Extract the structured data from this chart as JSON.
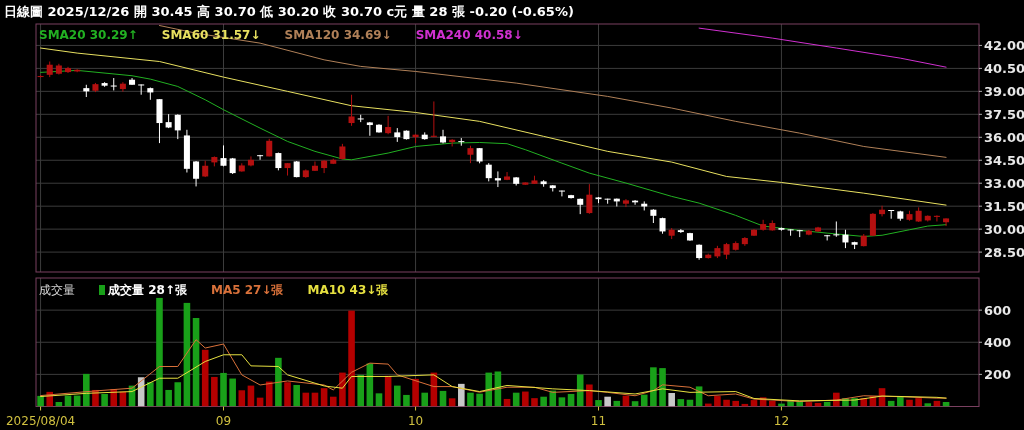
{
  "chart_data": [
    {
      "type": "candlestick",
      "title": "日線圖  2025/12/26  開 30.45  高 30.70  低 30.20  收 30.70 c元  量 28 張  -0.20 (-0.65%)",
      "categories": [
        "2025/08/04",
        null,
        null,
        null,
        null,
        null,
        null,
        null,
        null,
        null,
        null,
        null,
        null,
        null,
        null,
        null,
        null,
        null,
        null,
        null,
        "09",
        null,
        null,
        null,
        null,
        null,
        null,
        null,
        null,
        null,
        null,
        null,
        null,
        null,
        null,
        null,
        null,
        null,
        null,
        null,
        null,
        "10",
        null,
        null,
        null,
        null,
        null,
        null,
        null,
        null,
        null,
        null,
        null,
        null,
        null,
        null,
        null,
        null,
        null,
        null,
        null,
        "11",
        null,
        null,
        null,
        null,
        null,
        null,
        null,
        null,
        null,
        null,
        null,
        null,
        null,
        null,
        null,
        null,
        null,
        null,
        null,
        "12",
        null,
        null,
        null,
        null,
        null,
        null,
        null,
        null,
        null,
        null,
        null,
        null,
        null,
        null,
        null,
        null,
        null,
        null
      ],
      "ohlc": [
        [
          39.95,
          40.05,
          39.9,
          40.0
        ],
        [
          40.08,
          40.95,
          39.93,
          40.74
        ],
        [
          40.15,
          40.8,
          40.1,
          40.69
        ],
        [
          40.26,
          40.6,
          40.2,
          40.52
        ],
        [
          40.3,
          40.45,
          40.25,
          40.41
        ],
        [
          39.21,
          39.43,
          38.63,
          39.0
        ],
        [
          39.04,
          39.55,
          38.95,
          39.47
        ],
        [
          39.54,
          39.6,
          39.3,
          39.37
        ],
        [
          39.38,
          39.87,
          39.06,
          39.34
        ],
        [
          39.15,
          39.6,
          38.98,
          39.5
        ],
        [
          39.76,
          39.87,
          39.43,
          39.43
        ],
        [
          39.45,
          39.45,
          38.78,
          39.43
        ],
        [
          39.21,
          39.25,
          38.45,
          38.93
        ],
        [
          38.49,
          38.49,
          35.62,
          36.93
        ],
        [
          36.99,
          37.51,
          36.6,
          36.64
        ],
        [
          37.47,
          37.5,
          35.88,
          36.45
        ],
        [
          36.12,
          36.49,
          33.7,
          33.94
        ],
        [
          34.42,
          34.45,
          32.79,
          33.29
        ],
        [
          33.44,
          34.47,
          33.4,
          34.14
        ],
        [
          34.36,
          34.75,
          34.1,
          34.71
        ],
        [
          34.64,
          35.47,
          34.1,
          34.14
        ],
        [
          34.62,
          34.65,
          33.6,
          33.66
        ],
        [
          33.77,
          34.3,
          33.75,
          34.16
        ],
        [
          34.16,
          34.75,
          34.1,
          34.53
        ],
        [
          34.83,
          34.85,
          34.53,
          34.8
        ],
        [
          34.75,
          35.9,
          34.75,
          35.77
        ],
        [
          34.97,
          35.0,
          33.84,
          33.99
        ],
        [
          33.99,
          34.32,
          33.5,
          34.31
        ],
        [
          34.42,
          34.45,
          33.38,
          33.4
        ],
        [
          33.4,
          33.9,
          33.35,
          33.84
        ],
        [
          33.81,
          34.42,
          33.8,
          34.14
        ],
        [
          33.99,
          34.5,
          33.66,
          34.47
        ],
        [
          34.27,
          34.6,
          34.25,
          34.53
        ],
        [
          34.58,
          35.57,
          34.55,
          35.4
        ],
        [
          36.93,
          38.78,
          36.75,
          37.36
        ],
        [
          37.23,
          37.47,
          36.99,
          37.19
        ],
        [
          36.97,
          37.0,
          36.1,
          36.8
        ],
        [
          36.82,
          36.85,
          36.3,
          36.32
        ],
        [
          36.27,
          37.4,
          36.2,
          36.67
        ],
        [
          36.32,
          36.6,
          35.7,
          36.01
        ],
        [
          36.43,
          36.45,
          35.85,
          35.88
        ],
        [
          36.01,
          36.2,
          35.62,
          36.17
        ],
        [
          36.17,
          36.32,
          35.84,
          35.88
        ],
        [
          36.03,
          38.34,
          36.0,
          36.1
        ],
        [
          36.06,
          36.49,
          35.6,
          35.66
        ],
        [
          35.69,
          35.88,
          35.4,
          35.84
        ],
        [
          35.75,
          35.95,
          35.45,
          35.73
        ],
        [
          34.86,
          35.45,
          34.31,
          35.29
        ],
        [
          35.29,
          35.3,
          34.3,
          34.42
        ],
        [
          34.21,
          34.31,
          33.12,
          33.33
        ],
        [
          33.33,
          33.77,
          32.75,
          33.18
        ],
        [
          33.22,
          33.73,
          33.2,
          33.44
        ],
        [
          33.38,
          33.4,
          32.85,
          32.96
        ],
        [
          32.9,
          33.05,
          32.9,
          33.05
        ],
        [
          32.96,
          33.49,
          32.95,
          33.18
        ],
        [
          33.12,
          33.2,
          32.77,
          32.94
        ],
        [
          32.86,
          32.88,
          32.46,
          32.68
        ],
        [
          32.52,
          32.52,
          32.14,
          32.5
        ],
        [
          32.22,
          32.24,
          32.0,
          32.03
        ],
        [
          31.98,
          32.0,
          30.98,
          31.59
        ],
        [
          31.05,
          32.94,
          31.0,
          32.25
        ],
        [
          32.07,
          32.1,
          31.7,
          31.96
        ],
        [
          31.99,
          31.99,
          31.66,
          31.97
        ],
        [
          31.99,
          32.0,
          31.48,
          31.81
        ],
        [
          31.66,
          31.96,
          31.44,
          31.88
        ],
        [
          31.86,
          31.9,
          31.59,
          31.75
        ],
        [
          31.66,
          31.81,
          31.22,
          31.48
        ],
        [
          31.27,
          31.3,
          30.4,
          30.87
        ],
        [
          30.72,
          30.75,
          29.7,
          29.85
        ],
        [
          29.57,
          30.07,
          29.35,
          29.96
        ],
        [
          29.93,
          30.0,
          29.75,
          29.81
        ],
        [
          29.74,
          29.76,
          29.24,
          29.26
        ],
        [
          28.98,
          29.0,
          28.0,
          28.11
        ],
        [
          28.11,
          28.4,
          28.08,
          28.33
        ],
        [
          28.22,
          28.91,
          28.11,
          28.76
        ],
        [
          28.33,
          29.1,
          28.04,
          29.02
        ],
        [
          28.65,
          29.2,
          28.6,
          29.09
        ],
        [
          29.02,
          29.48,
          28.91,
          29.42
        ],
        [
          29.57,
          30.0,
          29.55,
          29.96
        ],
        [
          29.96,
          30.61,
          29.9,
          30.33
        ],
        [
          29.92,
          30.57,
          29.9,
          30.4
        ],
        [
          30.07,
          30.1,
          29.9,
          29.96
        ],
        [
          29.98,
          29.98,
          29.57,
          29.94
        ],
        [
          29.93,
          29.95,
          29.48,
          29.9
        ],
        [
          29.64,
          29.95,
          29.6,
          29.9
        ],
        [
          29.85,
          30.15,
          29.83,
          30.11
        ],
        [
          29.6,
          29.62,
          29.26,
          29.57
        ],
        [
          29.66,
          30.5,
          29.5,
          29.64
        ],
        [
          29.64,
          29.96,
          28.76,
          29.13
        ],
        [
          29.15,
          29.18,
          28.7,
          28.98
        ],
        [
          28.89,
          29.68,
          28.87,
          29.57
        ],
        [
          29.57,
          31.05,
          29.55,
          31.0
        ],
        [
          30.98,
          31.53,
          30.83,
          31.27
        ],
        [
          31.25,
          31.25,
          30.68,
          31.2
        ],
        [
          31.16,
          31.2,
          30.55,
          30.68
        ],
        [
          30.61,
          31.2,
          30.55,
          30.98
        ],
        [
          30.5,
          31.42,
          30.47,
          31.2
        ],
        [
          30.57,
          30.9,
          30.5,
          30.87
        ],
        [
          30.8,
          30.9,
          30.5,
          30.87
        ],
        [
          30.45,
          30.7,
          30.2,
          30.7
        ]
      ],
      "colors": [
        "#b41010",
        "#b41010",
        "#b41010",
        "#b41010",
        "#b41010",
        "#ffffff",
        "#b41010",
        "#ffffff",
        "#ffffff",
        "#b41010",
        "#ffffff",
        "#ffffff",
        "#ffffff",
        "#ffffff",
        "#ffffff",
        "#ffffff",
        "#ffffff",
        "#ffffff",
        "#b41010",
        "#b41010",
        "#ffffff",
        "#ffffff",
        "#b41010",
        "#b41010",
        "#ffffff",
        "#b41010",
        "#ffffff",
        "#b41010",
        "#ffffff",
        "#b41010",
        "#b41010",
        "#b41010",
        "#b41010",
        "#b41010",
        "#b41010",
        "#ffffff",
        "#ffffff",
        "#ffffff",
        "#b41010",
        "#ffffff",
        "#ffffff",
        "#b41010",
        "#ffffff",
        "#b41010",
        "#ffffff",
        "#b41010",
        "#ffffff",
        "#b41010",
        "#ffffff",
        "#ffffff",
        "#ffffff",
        "#b41010",
        "#ffffff",
        "#b41010",
        "#b41010",
        "#ffffff",
        "#ffffff",
        "#ffffff",
        "#ffffff",
        "#ffffff",
        "#b41010",
        "#ffffff",
        "#ffffff",
        "#ffffff",
        "#b41010",
        "#ffffff",
        "#ffffff",
        "#ffffff",
        "#ffffff",
        "#b41010",
        "#ffffff",
        "#ffffff",
        "#ffffff",
        "#b41010",
        "#b41010",
        "#b41010",
        "#b41010",
        "#b41010",
        "#b41010",
        "#b41010",
        "#b41010",
        "#ffffff",
        "#ffffff",
        "#ffffff",
        "#b41010",
        "#b41010",
        "#ffffff",
        "#ffffff",
        "#ffffff",
        "#ffffff",
        "#b41010",
        "#b41010",
        "#b41010",
        "#ffffff",
        "#ffffff",
        "#b41010",
        "#b41010",
        "#b41010",
        "#b41010",
        "#b41010"
      ],
      "series": [
        {
          "name": "SMA20 30.29↑",
          "type": "line",
          "color": "#22b022",
          "values": [
            40.24,
            null,
            null,
            null,
            40.37,
            null,
            null,
            null,
            null,
            null,
            40.02,
            null,
            39.8,
            null,
            null,
            39.32,
            null,
            null,
            38.45,
            null,
            37.8,
            null,
            null,
            null,
            36.6,
            null,
            null,
            35.73,
            null,
            null,
            35.08,
            null,
            null,
            34.58,
            34.53,
            null,
            null,
            null,
            34.97,
            null,
            null,
            35.4,
            null,
            null,
            null,
            35.62,
            null,
            null,
            35.66,
            null,
            null,
            35.58,
            null,
            35.19,
            null,
            null,
            null,
            34.31,
            null,
            null,
            33.66,
            null,
            null,
            null,
            33.01,
            null,
            null,
            null,
            null,
            32.14,
            null,
            null,
            31.7,
            null,
            null,
            null,
            30.9,
            null,
            null,
            30.2,
            null,
            null,
            null,
            29.92,
            null,
            null,
            29.74,
            null,
            null,
            null,
            29.52,
            null,
            29.6,
            null,
            null,
            29.96,
            null,
            30.2,
            null,
            30.29
          ]
        },
        {
          "name": "SMA60 31.57↓",
          "type": "line",
          "color": "#e8e060",
          "values": [
            41.83,
            null,
            null,
            null,
            41.5,
            null,
            null,
            null,
            null,
            null,
            null,
            null,
            null,
            40.95,
            null,
            null,
            null,
            null,
            null,
            null,
            39.93,
            null,
            null,
            null,
            null,
            null,
            null,
            39.0,
            null,
            null,
            null,
            null,
            null,
            null,
            38.06,
            null,
            null,
            null,
            null,
            null,
            null,
            37.62,
            null,
            null,
            null,
            null,
            null,
            null,
            37.04,
            null,
            null,
            null,
            null,
            null,
            null,
            36.06,
            null,
            null,
            null,
            null,
            null,
            null,
            35.08,
            null,
            null,
            null,
            null,
            null,
            null,
            34.38,
            null,
            null,
            null,
            null,
            null,
            33.44,
            null,
            null,
            null,
            null,
            null,
            33.05,
            null,
            null,
            null,
            null,
            null,
            null,
            null,
            null,
            32.35,
            null,
            null,
            null,
            null,
            null,
            null,
            null,
            null,
            31.57
          ]
        },
        {
          "name": "SMA120 34.69↓",
          "type": "line",
          "color": "#b08058",
          "values": [
            null,
            null,
            null,
            null,
            null,
            null,
            null,
            null,
            null,
            null,
            null,
            null,
            null,
            43.3,
            null,
            null,
            null,
            42.8,
            null,
            null,
            null,
            null,
            null,
            null,
            42.15,
            null,
            null,
            null,
            null,
            null,
            null,
            41.06,
            null,
            null,
            null,
            40.63,
            null,
            null,
            null,
            null,
            null,
            40.3,
            null,
            null,
            null,
            null,
            null,
            null,
            null,
            null,
            null,
            null,
            39.54,
            null,
            null,
            null,
            null,
            null,
            null,
            null,
            null,
            null,
            38.67,
            null,
            null,
            null,
            null,
            null,
            null,
            37.91,
            null,
            null,
            null,
            null,
            null,
            null,
            37.04,
            null,
            null,
            null,
            null,
            null,
            null,
            36.27,
            null,
            null,
            null,
            null,
            null,
            null,
            35.4,
            null,
            null,
            null,
            null,
            null,
            null,
            null,
            null,
            34.69
          ]
        },
        {
          "name": "SMA240 40.58↓",
          "type": "line",
          "color": "#d030d0",
          "values": [
            null,
            null,
            null,
            null,
            null,
            null,
            null,
            null,
            null,
            null,
            null,
            null,
            null,
            null,
            null,
            null,
            null,
            null,
            null,
            null,
            null,
            null,
            null,
            null,
            null,
            null,
            null,
            null,
            null,
            null,
            null,
            null,
            null,
            null,
            null,
            null,
            null,
            null,
            null,
            null,
            null,
            null,
            null,
            null,
            null,
            null,
            null,
            null,
            null,
            null,
            null,
            null,
            null,
            null,
            null,
            null,
            null,
            null,
            null,
            null,
            null,
            null,
            null,
            null,
            null,
            null,
            null,
            null,
            null,
            null,
            null,
            null,
            43.13,
            null,
            null,
            null,
            null,
            null,
            null,
            null,
            42.48,
            null,
            null,
            null,
            null,
            null,
            null,
            41.83,
            null,
            null,
            null,
            null,
            null,
            null,
            41.17,
            null,
            null,
            null,
            null,
            40.58
          ]
        }
      ],
      "ylim": [
        27.2,
        43.4
      ],
      "yticks": [
        {
          "value": 28.5,
          "label": "28.50"
        },
        {
          "value": 30,
          "label": "30.00"
        },
        {
          "value": 31.5,
          "label": "31.50"
        },
        {
          "value": 33,
          "label": "33.00"
        },
        {
          "value": 34.5,
          "label": "34.50"
        },
        {
          "value": 36,
          "label": "36.00"
        },
        {
          "value": 37.5,
          "label": "37.50"
        },
        {
          "value": 39,
          "label": "39.00"
        },
        {
          "value": 40.5,
          "label": "40.50"
        },
        {
          "value": 42,
          "label": "42.00"
        }
      ],
      "grid": true,
      "legend": "top left",
      "tick_labels": "y"
    },
    {
      "type": "bar",
      "title": "成交量",
      "categories": [
        "2025/08/04",
        null,
        null,
        null,
        null,
        null,
        null,
        null,
        null,
        null,
        null,
        null,
        null,
        null,
        null,
        null,
        null,
        null,
        null,
        null,
        "09",
        null,
        null,
        null,
        null,
        null,
        null,
        null,
        null,
        null,
        null,
        null,
        null,
        null,
        null,
        null,
        null,
        null,
        null,
        null,
        null,
        "10",
        null,
        null,
        null,
        null,
        null,
        null,
        null,
        null,
        null,
        null,
        null,
        null,
        null,
        null,
        null,
        null,
        null,
        null,
        null,
        "11",
        null,
        null,
        null,
        null,
        null,
        null,
        null,
        null,
        null,
        null,
        null,
        null,
        null,
        null,
        null,
        null,
        null,
        null,
        null,
        "12",
        null,
        null,
        null,
        null,
        null,
        null,
        null,
        null,
        null,
        null,
        null,
        null,
        null,
        null,
        null,
        null,
        null,
        null
      ],
      "series": [
        {
          "name": "成交量 28↑張",
          "values": [
            66,
            91,
            28,
            68,
            68,
            203,
            103,
            78,
            109,
            93,
            130,
            182,
            151,
            676,
            103,
            151,
            645,
            551,
            353,
            184,
            209,
            174,
            101,
            130,
            55,
            155,
            303,
            151,
            134,
            86,
            86,
            114,
            61,
            211,
            597,
            197,
            268,
            82,
            191,
            130,
            72,
            172,
            86,
            211,
            97,
            51,
            141,
            86,
            80,
            211,
            218,
            47,
            86,
            93,
            52,
            61,
            99,
            57,
            78,
            199,
            137,
            40,
            61,
            35,
            67,
            33,
            74,
            244,
            239,
            84,
            46,
            42,
            125,
            18,
            65,
            42,
            35,
            16,
            40,
            57,
            35,
            18,
            40,
            35,
            27,
            22,
            29,
            86,
            52,
            52,
            52,
            65,
            114,
            35,
            63,
            42,
            52,
            20,
            35,
            28
          ],
          "colors": [
            "#19a019",
            "#b40000",
            "#19a019",
            "#19a019",
            "#19a019",
            "#19a019",
            "#b40000",
            "#19a019",
            "#b40000",
            "#b40000",
            "#19a019",
            "#c8c8c8",
            "#19a019",
            "#19a019",
            "#19a019",
            "#19a019",
            "#19a019",
            "#19a019",
            "#b40000",
            "#b40000",
            "#19a019",
            "#19a019",
            "#b40000",
            "#b40000",
            "#b40000",
            "#b40000",
            "#19a019",
            "#b40000",
            "#19a019",
            "#b40000",
            "#b40000",
            "#b40000",
            "#b40000",
            "#b40000",
            "#b40000",
            "#19a019",
            "#19a019",
            "#19a019",
            "#b40000",
            "#19a019",
            "#19a019",
            "#b40000",
            "#19a019",
            "#b40000",
            "#19a019",
            "#b40000",
            "#c8c8c8",
            "#19a019",
            "#19a019",
            "#19a019",
            "#19a019",
            "#b40000",
            "#19a019",
            "#b40000",
            "#b40000",
            "#19a019",
            "#19a019",
            "#19a019",
            "#19a019",
            "#19a019",
            "#b40000",
            "#19a019",
            "#c8c8c8",
            "#19a019",
            "#b40000",
            "#19a019",
            "#19a019",
            "#19a019",
            "#19a019",
            "#c8c8c8",
            "#19a019",
            "#19a019",
            "#19a019",
            "#b40000",
            "#b40000",
            "#b40000",
            "#b40000",
            "#b40000",
            "#b40000",
            "#b40000",
            "#b40000",
            "#19a019",
            "#19a019",
            "#19a019",
            "#b40000",
            "#b40000",
            "#19a019",
            "#b40000",
            "#19a019",
            "#19a019",
            "#b40000",
            "#b40000",
            "#b40000",
            "#19a019",
            "#19a019",
            "#b40000",
            "#b40000",
            "#19a019",
            "#b40000",
            "#19a019"
          ]
        },
        {
          "name": "MA5 27↓張",
          "type": "line",
          "color": "#d9713a",
          "values": [
            68,
            null,
            null,
            null,
            null,
            null,
            97,
            null,
            null,
            null,
            114,
            null,
            null,
            249,
            null,
            249,
            null,
            416,
            364,
            null,
            389,
            null,
            197,
            null,
            134,
            null,
            null,
            159,
            null,
            null,
            null,
            134,
            103,
            null,
            213,
            null,
            270,
            null,
            264,
            197,
            null,
            null,
            null,
            124,
            null,
            124,
            null,
            null,
            89,
            null,
            null,
            120,
            null,
            null,
            120,
            null,
            88,
            null,
            null,
            null,
            99,
            null,
            88,
            null,
            null,
            67,
            null,
            99,
            135,
            null,
            null,
            120,
            null,
            67,
            null,
            null,
            78,
            null,
            46,
            null,
            null,
            null,
            null,
            31,
            null,
            null,
            null,
            40,
            null,
            null,
            67,
            null,
            null,
            null,
            61,
            null,
            null,
            null,
            52,
            52
          ]
        },
        {
          "name": "MA10 43↓張",
          "type": "line",
          "color": "#e6e040",
          "values": [
            62,
            null,
            null,
            null,
            null,
            82,
            null,
            null,
            null,
            null,
            93,
            null,
            null,
            176,
            null,
            176,
            null,
            null,
            280,
            null,
            322,
            null,
            322,
            253,
            null,
            null,
            249,
            197,
            null,
            null,
            null,
            128,
            null,
            114,
            187,
            null,
            null,
            null,
            187,
            null,
            null,
            null,
            null,
            197,
            null,
            124,
            null,
            null,
            93,
            null,
            null,
            131,
            null,
            null,
            null,
            null,
            110,
            null,
            null,
            null,
            99,
            null,
            null,
            null,
            null,
            78,
            null,
            null,
            110,
            null,
            null,
            88,
            null,
            null,
            null,
            null,
            93,
            null,
            50,
            null,
            null,
            null,
            null,
            35,
            null,
            null,
            null,
            null,
            null,
            40,
            null,
            null,
            65,
            null,
            null,
            null,
            null,
            null,
            57,
            52
          ]
        }
      ],
      "ylim": [
        0,
        800
      ],
      "yticks": [
        {
          "value": 200,
          "label": "200"
        },
        {
          "value": 400,
          "label": "400"
        },
        {
          "value": 600,
          "label": "600"
        }
      ],
      "grid": true,
      "legend": "top left"
    }
  ]
}
